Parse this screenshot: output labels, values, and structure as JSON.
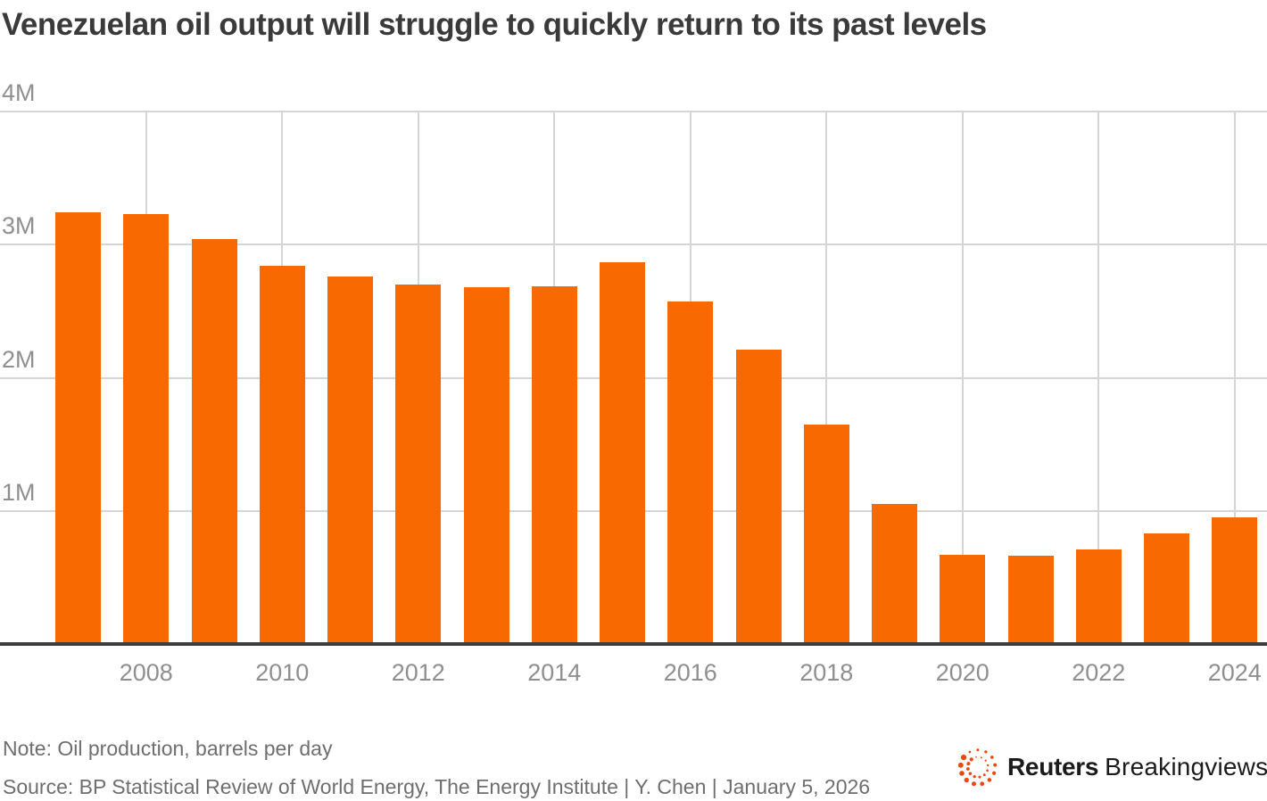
{
  "title": "Venezuelan oil output will struggle to quickly return to its past levels",
  "footnote": {
    "note": "Note: Oil production, barrels per day",
    "source": "Source: BP Statistical Review of World Energy, The Energy Institute | Y. Chen | January 5, 2026"
  },
  "branding": {
    "logo_icon": "reuters-dotted-circle-logo",
    "name_bold": "Reuters",
    "name_regular": "Breakingviews"
  },
  "colors": {
    "bar": "#f96901",
    "grid": "#d5d5d5",
    "axis": "#3c3c3c",
    "title_text": "#3a3a3a",
    "tick_text": "#8f8f8f",
    "note_text": "#6e6e6e",
    "logo_orange": "#e8480e",
    "brand_text": "#1b1b1b"
  },
  "chart_data": {
    "type": "bar",
    "title": "Venezuelan oil output will struggle to quickly return to its past levels",
    "value_unit": "millions of barrels per day",
    "categories": [
      2007,
      2008,
      2009,
      2010,
      2011,
      2012,
      2013,
      2014,
      2015,
      2016,
      2017,
      2018,
      2019,
      2020,
      2021,
      2022,
      2023,
      2024
    ],
    "values": [
      3.24,
      3.23,
      3.04,
      2.84,
      2.76,
      2.7,
      2.68,
      2.69,
      2.87,
      2.57,
      2.21,
      1.65,
      1.05,
      0.67,
      0.66,
      0.71,
      0.83,
      0.95
    ],
    "series_name": "Oil production, barrels per day",
    "y_ticks": [
      {
        "value": 1,
        "label": "1M"
      },
      {
        "value": 2,
        "label": "2M"
      },
      {
        "value": 3,
        "label": "3M"
      },
      {
        "value": 4,
        "label": "4M"
      }
    ],
    "x_ticks": [
      "2008",
      "2010",
      "2012",
      "2014",
      "2016",
      "2018",
      "2020",
      "2022",
      "2024"
    ],
    "ylim": [
      0,
      4
    ],
    "grid": true,
    "legend": "none"
  }
}
